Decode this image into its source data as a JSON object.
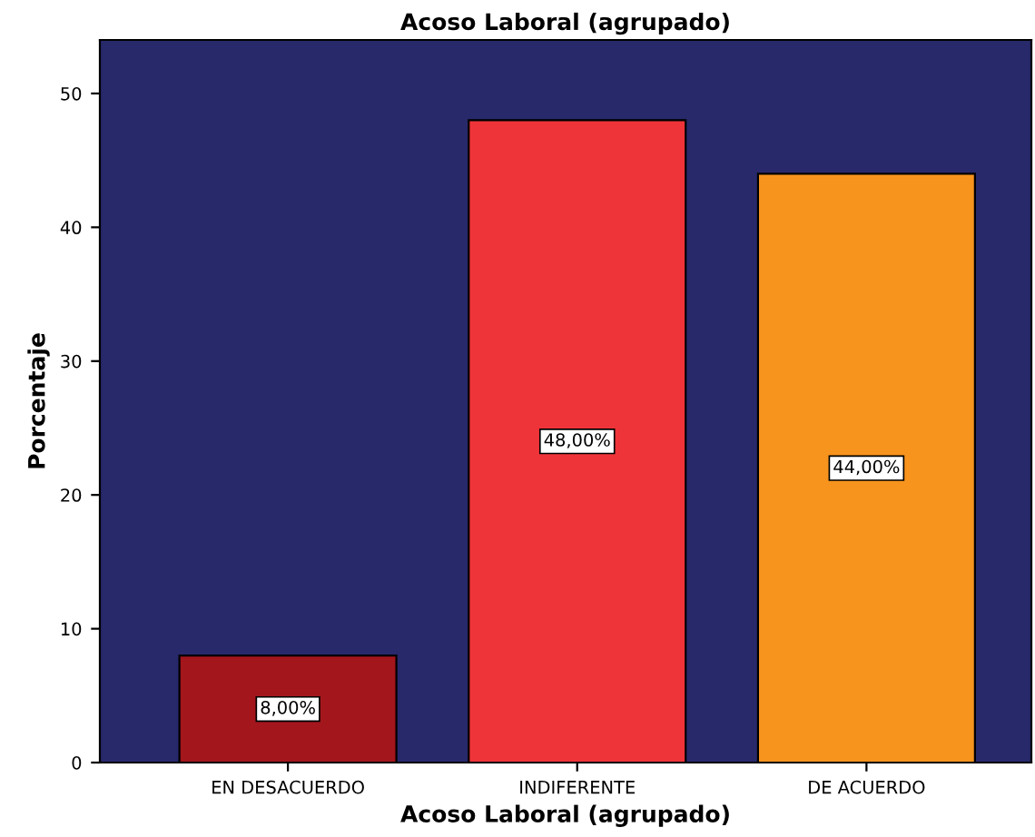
{
  "chart_data": {
    "type": "bar",
    "title": "Acoso Laboral (agrupado)",
    "xlabel": "Acoso Laboral (agrupado)",
    "ylabel": "Porcentaje",
    "categories": [
      "EN DESACUERDO",
      "INDIFERENTE",
      "DE ACUERDO"
    ],
    "values": [
      8,
      48,
      44
    ],
    "colors": [
      "#a3161c",
      "#ef3439",
      "#f7941d"
    ],
    "value_labels": [
      "8,00%",
      "48,00%",
      "44,00%"
    ],
    "ylim": [
      0,
      54
    ],
    "yticks": [
      0,
      10,
      20,
      30,
      40,
      50
    ],
    "grid": false,
    "legend": false
  }
}
